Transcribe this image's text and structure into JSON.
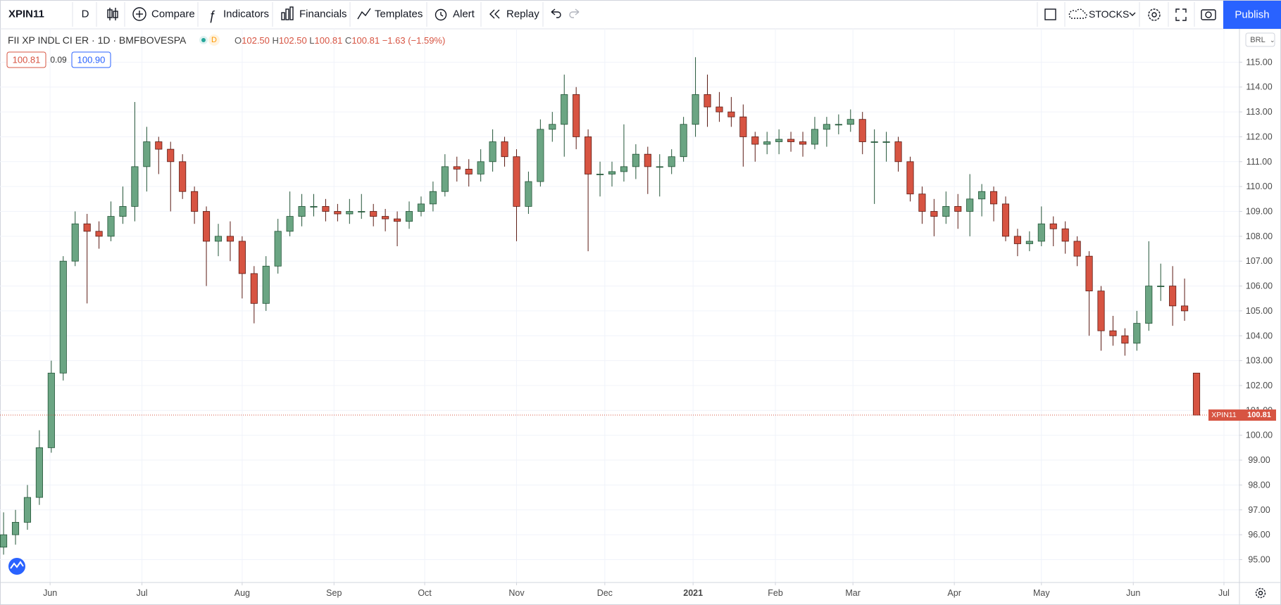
{
  "toolbar": {
    "symbol": "XPIN11",
    "interval": "D",
    "compare": "Compare",
    "indicators": "Indicators",
    "financials": "Financials",
    "templates": "Templates",
    "alert": "Alert",
    "replay": "Replay",
    "watchlist": "STOCKS",
    "publish": "Publish"
  },
  "legend": {
    "title": "FII XP INDL CI ER · 1D · BMFBOVESPA",
    "market_status": "D",
    "ohlc": [
      {
        "label": "O",
        "value": "102.50"
      },
      {
        "label": "H",
        "value": "102.50"
      },
      {
        "label": "L",
        "value": "100.81"
      },
      {
        "label": "C",
        "value": "100.81"
      }
    ],
    "change": "−1.63 (−1.59%)"
  },
  "quote": {
    "bid": "100.81",
    "spread": "0.09",
    "ask": "100.90"
  },
  "currency": "BRL",
  "chart_data": {
    "type": "candlestick",
    "open": [
      95.5,
      96.0,
      96.5,
      97.5,
      99.5,
      102.5,
      107.0,
      108.5,
      108.2,
      108.0,
      108.8,
      109.2,
      110.8,
      111.8,
      111.5,
      111.0,
      109.8,
      109.0,
      107.8,
      108.0,
      107.8,
      106.5,
      105.3,
      106.8,
      108.2,
      108.8,
      109.2,
      109.2,
      109.0,
      108.9,
      109.0,
      109.0,
      108.8,
      108.7,
      108.6,
      109.0,
      109.3,
      109.8,
      110.8,
      110.7,
      110.5,
      111.0,
      111.8,
      111.2,
      109.2,
      110.2,
      112.3,
      112.5,
      113.7,
      112.0,
      110.5,
      110.5,
      110.6,
      110.8,
      111.3,
      110.8,
      110.8,
      111.2,
      112.5,
      113.7,
      113.2,
      113.0,
      112.8,
      112.0,
      111.7,
      111.8,
      111.9,
      111.8,
      111.7,
      112.3,
      112.5,
      112.5,
      112.7,
      111.8,
      111.8,
      111.8,
      111.0,
      109.7,
      109.0,
      108.8,
      109.2,
      109.0,
      109.5,
      109.8,
      109.3,
      108.0,
      107.7,
      107.8,
      108.5,
      108.3,
      107.8,
      107.2,
      105.8,
      104.2,
      104.0,
      103.7,
      104.5,
      106.0,
      106.0,
      105.2,
      102.5
    ],
    "high": [
      96.9,
      97.0,
      98.0,
      100.2,
      103.0,
      107.2,
      109.0,
      108.9,
      108.6,
      109.4,
      110.0,
      113.4,
      112.4,
      112.0,
      111.8,
      111.3,
      110.0,
      109.2,
      108.5,
      108.6,
      108.0,
      106.8,
      107.2,
      108.7,
      109.8,
      109.7,
      109.7,
      109.5,
      109.3,
      109.5,
      109.7,
      109.3,
      109.1,
      109.0,
      109.4,
      109.6,
      110.2,
      111.3,
      111.2,
      111.1,
      111.5,
      112.3,
      112.0,
      111.5,
      110.6,
      112.7,
      113.0,
      114.5,
      114.0,
      112.3,
      111.0,
      111.0,
      112.5,
      111.7,
      111.6,
      111.3,
      111.5,
      112.8,
      115.2,
      114.5,
      113.8,
      113.6,
      113.3,
      112.2,
      112.2,
      112.3,
      112.2,
      112.2,
      112.8,
      112.8,
      112.9,
      113.1,
      113.0,
      112.3,
      112.2,
      112.0,
      111.2,
      110.0,
      109.5,
      109.8,
      109.7,
      110.5,
      110.1,
      110.0,
      109.6,
      108.3,
      108.2,
      109.2,
      108.8,
      108.6,
      108.0,
      107.4,
      106.0,
      104.8,
      104.3,
      105.0,
      107.8,
      106.9,
      106.8,
      106.3,
      102.5
    ],
    "low": [
      95.2,
      95.6,
      96.2,
      97.2,
      99.3,
      102.2,
      106.8,
      105.3,
      107.5,
      107.8,
      108.5,
      108.6,
      109.8,
      110.5,
      109.0,
      109.5,
      108.5,
      106.0,
      107.2,
      107.0,
      105.5,
      104.5,
      105.0,
      106.5,
      108.0,
      108.4,
      108.8,
      108.6,
      108.6,
      108.5,
      108.7,
      108.4,
      108.2,
      107.6,
      108.3,
      108.8,
      109.0,
      109.6,
      110.2,
      110.0,
      110.2,
      110.6,
      110.8,
      107.8,
      108.9,
      110.0,
      111.8,
      111.2,
      111.5,
      107.4,
      109.6,
      110.0,
      110.2,
      110.3,
      109.7,
      109.6,
      110.5,
      111.0,
      112.0,
      112.4,
      112.6,
      112.4,
      110.8,
      111.0,
      111.3,
      111.3,
      111.4,
      111.2,
      111.5,
      111.6,
      112.1,
      112.2,
      111.3,
      109.3,
      111.0,
      110.6,
      109.4,
      108.5,
      108.0,
      108.5,
      108.3,
      108.0,
      108.8,
      108.6,
      107.8,
      107.2,
      107.4,
      107.6,
      107.6,
      107.3,
      106.8,
      104.0,
      103.4,
      103.6,
      103.2,
      103.4,
      104.2,
      105.4,
      104.4,
      104.6,
      100.81
    ],
    "close": [
      96.0,
      96.5,
      97.5,
      99.5,
      102.5,
      107.0,
      108.5,
      108.2,
      108.0,
      108.8,
      109.2,
      110.8,
      111.8,
      111.5,
      111.0,
      109.8,
      109.0,
      107.8,
      108.0,
      107.8,
      106.5,
      105.3,
      106.8,
      108.2,
      108.8,
      109.2,
      109.2,
      109.0,
      108.9,
      109.0,
      109.0,
      108.8,
      108.7,
      108.6,
      109.0,
      109.3,
      109.8,
      110.8,
      110.7,
      110.5,
      111.0,
      111.8,
      111.2,
      109.2,
      110.2,
      112.3,
      112.5,
      113.7,
      112.0,
      110.5,
      110.5,
      110.6,
      110.8,
      111.3,
      110.8,
      110.8,
      111.2,
      112.5,
      113.7,
      113.2,
      113.0,
      112.8,
      112.0,
      111.7,
      111.8,
      111.9,
      111.8,
      111.7,
      112.3,
      112.5,
      112.5,
      112.7,
      111.8,
      111.8,
      111.8,
      111.0,
      109.7,
      109.0,
      108.8,
      109.2,
      109.0,
      109.5,
      109.8,
      109.3,
      108.0,
      107.7,
      107.8,
      108.5,
      108.3,
      107.8,
      107.2,
      105.8,
      104.2,
      104.0,
      103.7,
      104.5,
      106.0,
      106.0,
      105.2,
      105.0,
      100.81
    ],
    "up_color": "#6ba583",
    "down_color": "#d75442",
    "last_price": 100.81,
    "xlim": [
      -0.3,
      103.6
    ],
    "xticks": [
      {
        "value": 3.9,
        "label": "Jun"
      },
      {
        "value": 11.6,
        "label": "Jul"
      },
      {
        "value": 20,
        "label": "Aug"
      },
      {
        "value": 27.7,
        "label": "Sep"
      },
      {
        "value": 35.3,
        "label": "Oct"
      },
      {
        "value": 43,
        "label": "Nov"
      },
      {
        "value": 50.4,
        "label": "Dec"
      },
      {
        "value": 57.8,
        "label": "2021"
      },
      {
        "value": 64.7,
        "label": "Feb"
      },
      {
        "value": 71.2,
        "label": "Mar"
      },
      {
        "value": 79.7,
        "label": "Apr"
      },
      {
        "value": 87,
        "label": "May"
      },
      {
        "value": 94.7,
        "label": "Jun"
      },
      {
        "value": 102.3,
        "label": "Jul"
      }
    ],
    "ylim": [
      94.08,
      116.34
    ],
    "yticks": [
      {
        "value": 95,
        "label": "95.00"
      },
      {
        "value": 96,
        "label": "96.00"
      },
      {
        "value": 97,
        "label": "97.00"
      },
      {
        "value": 98,
        "label": "98.00"
      },
      {
        "value": 99,
        "label": "99.00"
      },
      {
        "value": 100,
        "label": "100.00"
      },
      {
        "value": 101,
        "label": "101.00"
      },
      {
        "value": 102,
        "label": "102.00"
      },
      {
        "value": 103,
        "label": "103.00"
      },
      {
        "value": 104,
        "label": "104.00"
      },
      {
        "value": 105,
        "label": "105.00"
      },
      {
        "value": 106,
        "label": "106.00"
      },
      {
        "value": 107,
        "label": "107.00"
      },
      {
        "value": 108,
        "label": "108.00"
      },
      {
        "value": 109,
        "label": "109.00"
      },
      {
        "value": 110,
        "label": "110.00"
      },
      {
        "value": 111,
        "label": "111.00"
      },
      {
        "value": 112,
        "label": "112.00"
      },
      {
        "value": 113,
        "label": "113.00"
      },
      {
        "value": 114,
        "label": "114.00"
      },
      {
        "value": 115,
        "label": "115.00"
      }
    ],
    "grid": true
  }
}
